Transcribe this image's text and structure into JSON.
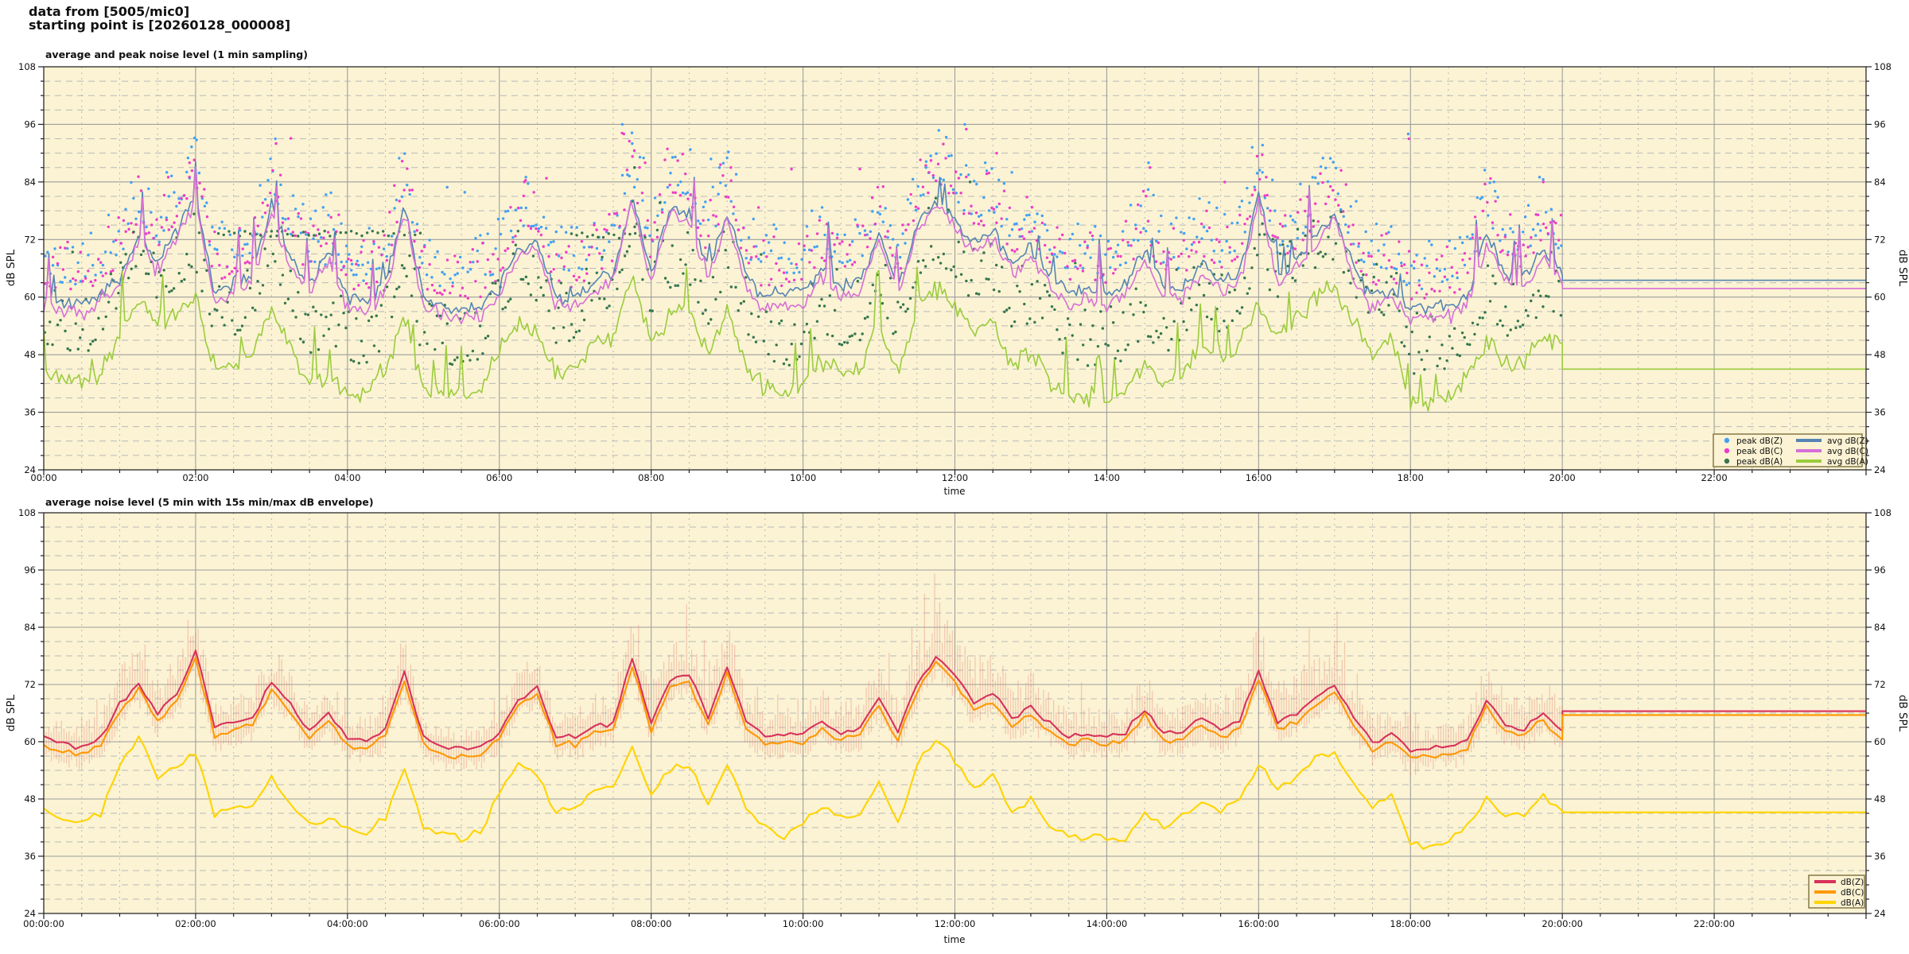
{
  "header": {
    "line1": "data from [5005/mic0]",
    "line2": "starting point is [20260128_000008]"
  },
  "colors": {
    "plot_bg": "#fbf3d3",
    "grid_major": "#9e9e9e",
    "grid_minor": "#b9b9b9",
    "frame": "#2a2a2a",
    "tick": "#222222",
    "peak_dBZ": "#41a0f5",
    "peak_dBC": "#ee3cc8",
    "peak_dBA": "#35764e",
    "avg_dBZ": "#5584b4",
    "avg_dBC": "#d66fd6",
    "avg_dBA": "#9bcc3d",
    "dBZ_5min": "#d8315b",
    "dBC_5min": "#ff9800",
    "dBA_5min": "#ffd400",
    "envelope": "rgba(224,116,104,0.33)",
    "legend_border": "#8d8050",
    "legend_bg": "#fbf3d3"
  },
  "charts": [
    {
      "title": "average and peak noise level (1 min sampling)",
      "xlabel": "time",
      "ylabel_left": "dB SPL",
      "ylabel_right": "dB SPL",
      "y_ticks": [
        24,
        36,
        48,
        60,
        72,
        84,
        96,
        108
      ],
      "x_tick_hours": [
        0,
        2,
        4,
        6,
        8,
        10,
        12,
        14,
        16,
        18,
        20,
        22
      ],
      "x_tick_labels": [
        "00:00",
        "02:00",
        "04:00",
        "06:00",
        "08:00",
        "10:00",
        "12:00",
        "14:00",
        "16:00",
        "18:00",
        "20:00",
        "22:00"
      ],
      "legend": {
        "scatter": [
          {
            "label": "peak dB(Z)",
            "color_key": "peak_dBZ"
          },
          {
            "label": "peak dB(C)",
            "color_key": "peak_dBC"
          },
          {
            "label": "peak dB(A)",
            "color_key": "peak_dBA"
          }
        ],
        "lines": [
          {
            "label": "avg dB(Z)",
            "color_key": "avg_dBZ"
          },
          {
            "label": "avg dB(C)",
            "color_key": "avg_dBC"
          },
          {
            "label": "avg dB(A)",
            "color_key": "avg_dBA"
          }
        ]
      }
    },
    {
      "title": "average noise level (5 min with 15s min/max dB envelope)",
      "xlabel": "time",
      "ylabel_left": "dB SPL",
      "ylabel_right": "dB SPL",
      "y_ticks": [
        24,
        36,
        48,
        60,
        72,
        84,
        96,
        108
      ],
      "x_tick_hours": [
        0,
        2,
        4,
        6,
        8,
        10,
        12,
        14,
        16,
        18,
        20,
        22
      ],
      "x_tick_labels": [
        "00:00:00",
        "02:00:00",
        "04:00:00",
        "06:00:00",
        "08:00:00",
        "10:00:00",
        "12:00:00",
        "14:00:00",
        "16:00:00",
        "18:00:00",
        "20:00:00",
        "22:00:00"
      ],
      "legend": {
        "lines": [
          {
            "label": "dB(Z)",
            "color_key": "dBZ_5min"
          },
          {
            "label": "dB(C)",
            "color_key": "dBC_5min"
          },
          {
            "label": "dB(A)",
            "color_key": "dBA_5min"
          }
        ]
      }
    }
  ],
  "chart_data": [
    {
      "type": "line+scatter",
      "title": "average and peak noise level (1 min sampling)",
      "xlabel": "time",
      "ylabel": "dB SPL",
      "xlim_hours": [
        0,
        24
      ],
      "ylim": [
        24,
        108
      ],
      "grid": true,
      "legend_position": "bottom-right-inside",
      "data_ends_at_hour": 20,
      "hold_last_value_until_hour": 24,
      "sample_step_hours": 0.25,
      "series": [
        {
          "name": "avg dB(Z)",
          "values": [
            60,
            59,
            58.5,
            61,
            64,
            73,
            67,
            74,
            81,
            61,
            63,
            65,
            79,
            68,
            63,
            70,
            60,
            59,
            63,
            79,
            60,
            58,
            57.5,
            58,
            62,
            70,
            71,
            60,
            60,
            63,
            65,
            81,
            65,
            79,
            77,
            66,
            78,
            64,
            60,
            61,
            61,
            66,
            62,
            63,
            73,
            62,
            75,
            81,
            76,
            71,
            74,
            67,
            70,
            65,
            61,
            62,
            60,
            63,
            70,
            62,
            62,
            67,
            63,
            65,
            82,
            65,
            68,
            72,
            78,
            66,
            60,
            62,
            57,
            58,
            58,
            60,
            73,
            65,
            64,
            70,
            65
          ],
          "flat_after_20h": 63.5
        },
        {
          "name": "avg dB(C)",
          "values": [
            58,
            57,
            56.5,
            59,
            62.5,
            72,
            65,
            72.5,
            80,
            59,
            61,
            63,
            78,
            66,
            61,
            68,
            58,
            57,
            61,
            78,
            58,
            56,
            55.5,
            56,
            60,
            69,
            70,
            58,
            58,
            61,
            63,
            80,
            63,
            78,
            76,
            64,
            77,
            62,
            57.5,
            58.5,
            58.5,
            64,
            60,
            61,
            72,
            60,
            74,
            80,
            75,
            69,
            72.5,
            65,
            68,
            63,
            58.5,
            60,
            57.5,
            61,
            68,
            60,
            60,
            65,
            61,
            63,
            81,
            63,
            66,
            70.5,
            77,
            64,
            57.5,
            60,
            55,
            56,
            56,
            58,
            71.5,
            63,
            62,
            68,
            63
          ],
          "flat_after_20h": 61.8
        },
        {
          "name": "avg dB(A)",
          "values": [
            43,
            42.5,
            42,
            44,
            52,
            60,
            53,
            56,
            60,
            45,
            46,
            48,
            58,
            49,
            42,
            44,
            40,
            39.5,
            44,
            56,
            41,
            40,
            39.5,
            41,
            50,
            55,
            52,
            44,
            45,
            51,
            52,
            66,
            50,
            56,
            57,
            48,
            58,
            46,
            41,
            39,
            42,
            47,
            44,
            45,
            55,
            43,
            58,
            62,
            58,
            52,
            55,
            46,
            49,
            42,
            39,
            39.5,
            39,
            40,
            46,
            42,
            44,
            50,
            46,
            50,
            58,
            52,
            55,
            60,
            62,
            55,
            47,
            52,
            38,
            37.5,
            39,
            43,
            51,
            46,
            46,
            52,
            50
          ],
          "flat_after_20h": 45.0
        }
      ],
      "scatter_series": [
        {
          "name": "peak dB(Z)",
          "rule": "avg dB(Z) plus 4-15 dB, 1-min dots"
        },
        {
          "name": "peak dB(C)",
          "rule": "avg dB(C) plus 4-15 dB, 1-min dots"
        },
        {
          "name": "peak dB(A)",
          "rule": "avg dB(A) plus 6-19 dB, 1-min dots"
        }
      ],
      "scatter_outliers": [
        {
          "series": "Z",
          "hour": 1.62,
          "db": 86
        },
        {
          "series": "C",
          "hour": 1.64,
          "db": 85
        },
        {
          "series": "Z",
          "hour": 1.9,
          "db": 89
        },
        {
          "series": "C",
          "hour": 1.92,
          "db": 88
        },
        {
          "series": "Z",
          "hour": 3.05,
          "db": 93
        },
        {
          "series": "C",
          "hour": 3.06,
          "db": 92
        },
        {
          "series": "Z",
          "hour": 6.35,
          "db": 85
        },
        {
          "series": "C",
          "hour": 6.33,
          "db": 84
        },
        {
          "series": "Z",
          "hour": 7.62,
          "db": 96
        },
        {
          "series": "C",
          "hour": 7.64,
          "db": 94
        },
        {
          "series": "Z",
          "hour": 7.75,
          "db": 92
        },
        {
          "series": "Z",
          "hour": 7.9,
          "db": 89
        },
        {
          "series": "C",
          "hour": 7.92,
          "db": 88
        },
        {
          "series": "A",
          "hour": 7.78,
          "db": 87
        },
        {
          "series": "Z",
          "hour": 8.9,
          "db": 87
        },
        {
          "series": "Z",
          "hour": 9.0,
          "db": 89
        },
        {
          "series": "C",
          "hour": 9.05,
          "db": 87
        },
        {
          "series": "Z",
          "hour": 11.62,
          "db": 87
        },
        {
          "series": "C",
          "hour": 11.66,
          "db": 86
        },
        {
          "series": "Z",
          "hour": 12.13,
          "db": 96
        },
        {
          "series": "C",
          "hour": 12.15,
          "db": 95
        },
        {
          "series": "A",
          "hour": 12.2,
          "db": 84
        },
        {
          "series": "Z",
          "hour": 12.4,
          "db": 88
        },
        {
          "series": "C",
          "hour": 12.55,
          "db": 90
        },
        {
          "series": "Z",
          "hour": 12.75,
          "db": 86
        },
        {
          "series": "Z",
          "hour": 14.55,
          "db": 88
        },
        {
          "series": "C",
          "hour": 14.57,
          "db": 87
        },
        {
          "series": "Z",
          "hour": 16.05,
          "db": 86
        },
        {
          "series": "C",
          "hour": 16.1,
          "db": 85
        },
        {
          "series": "Z",
          "hour": 17.97,
          "db": 94
        },
        {
          "series": "C",
          "hour": 17.98,
          "db": 93
        },
        {
          "series": "Z",
          "hour": 19.1,
          "db": 84
        },
        {
          "series": "Z",
          "hour": 19.7,
          "db": 85
        },
        {
          "series": "C",
          "hour": 19.75,
          "db": 84
        }
      ],
      "scatter_bands": [
        {
          "series": "A",
          "from_hour": 2.3,
          "to_hour": 5.0,
          "level_db": 73.2
        },
        {
          "series": "A",
          "from_hour": 6.95,
          "to_hour": 7.8,
          "level_db": 72.8
        },
        {
          "series": "Z",
          "from_hour": 3.5,
          "to_hour": 4.3,
          "level_db": 67.0
        }
      ]
    },
    {
      "type": "line+envelope",
      "title": "average noise level (5 min with 15s min/max dB envelope)",
      "xlabel": "time",
      "ylabel": "dB SPL",
      "xlim_hours": [
        0,
        24
      ],
      "ylim": [
        24,
        108
      ],
      "grid": true,
      "legend_position": "bottom-right-inside",
      "data_ends_at_hour": 20,
      "hold_last_value_until_hour": 24,
      "sample_step_hours": 0.25,
      "series": [
        {
          "name": "dB(Z)",
          "values": [
            60.5,
            59.5,
            59,
            60.5,
            68,
            72,
            66,
            70,
            79,
            63,
            64,
            65,
            72.5,
            68,
            62,
            66,
            61,
            60,
            63,
            74.5,
            61,
            59,
            58.5,
            59,
            62,
            69,
            71,
            61,
            61,
            63,
            64,
            77.5,
            64,
            73,
            74,
            65,
            76,
            64,
            61,
            61.5,
            61.5,
            64,
            62,
            63,
            69,
            62,
            72,
            78,
            74,
            68,
            70,
            65,
            67,
            64,
            61,
            62,
            60.5,
            62,
            67,
            61.5,
            62,
            65,
            62.5,
            64,
            75,
            64,
            66,
            69,
            72,
            65,
            60,
            61.5,
            58,
            58.5,
            59,
            60,
            69,
            63.5,
            63,
            66,
            62
          ],
          "flat_after_20h": 66.4
        },
        {
          "name": "dB(C)",
          "values": [
            59,
            58,
            57.5,
            59,
            66.5,
            71,
            64.5,
            68.5,
            78,
            61,
            62.5,
            63.5,
            71,
            66.5,
            60.5,
            64.5,
            59.5,
            58.5,
            61.5,
            73,
            59.5,
            57.5,
            57,
            57.5,
            60.5,
            68,
            70,
            59.5,
            59.5,
            61.5,
            62.5,
            76,
            62.5,
            71.5,
            72.5,
            63.5,
            74.5,
            62.5,
            59.5,
            60,
            60,
            62.5,
            60.5,
            61.5,
            67.5,
            60.5,
            70.5,
            77,
            72.5,
            66.5,
            68.5,
            63.5,
            65.5,
            62.5,
            59.5,
            60.5,
            59,
            60.5,
            65.5,
            60,
            60.5,
            63.5,
            61,
            62.5,
            73.5,
            62.5,
            64.5,
            67.5,
            70.5,
            63.5,
            58.5,
            60,
            56.5,
            57,
            57.5,
            58.5,
            67.5,
            62,
            61.5,
            64.5,
            60.5
          ],
          "flat_after_20h": 65.6
        },
        {
          "name": "dB(A)",
          "values": [
            46,
            44,
            43,
            45,
            55,
            61,
            52,
            55,
            57.5,
            45,
            46,
            47,
            52,
            47,
            43,
            44,
            41.5,
            41,
            44,
            55,
            42,
            40.5,
            40,
            41,
            49,
            55,
            53,
            45,
            46,
            50,
            51,
            59,
            49,
            54,
            55,
            47,
            56,
            46,
            42,
            40,
            43,
            46,
            44,
            45,
            52,
            43,
            55,
            61,
            56,
            50,
            53,
            45,
            48,
            42,
            40,
            40,
            39.5,
            40,
            45,
            42,
            44,
            48,
            45,
            48,
            55,
            50,
            53,
            57,
            58,
            52,
            46,
            49,
            38.5,
            38,
            39.5,
            42,
            48,
            45,
            45,
            49,
            46
          ],
          "flat_after_20h": 45.2
        }
      ],
      "envelope": {
        "around": "dB(Z)",
        "up_db": [
          5,
          5,
          5,
          6,
          8,
          8,
          7,
          8,
          9,
          6,
          6,
          6,
          8,
          7,
          5,
          7,
          5,
          5,
          6,
          9,
          4,
          4,
          4,
          4,
          5,
          7,
          7,
          5,
          6,
          7,
          7,
          10,
          8,
          10,
          9,
          8,
          10,
          8,
          6,
          6,
          6,
          7,
          6,
          7,
          9,
          7,
          10,
          11,
          11,
          10,
          10,
          8,
          8,
          7,
          6,
          6,
          6,
          7,
          8,
          6,
          6,
          8,
          7,
          8,
          11,
          9,
          9,
          10,
          10,
          8,
          6,
          6,
          9,
          5,
          5,
          6,
          8,
          7,
          7,
          8,
          6
        ],
        "down_db": 3
      }
    }
  ]
}
